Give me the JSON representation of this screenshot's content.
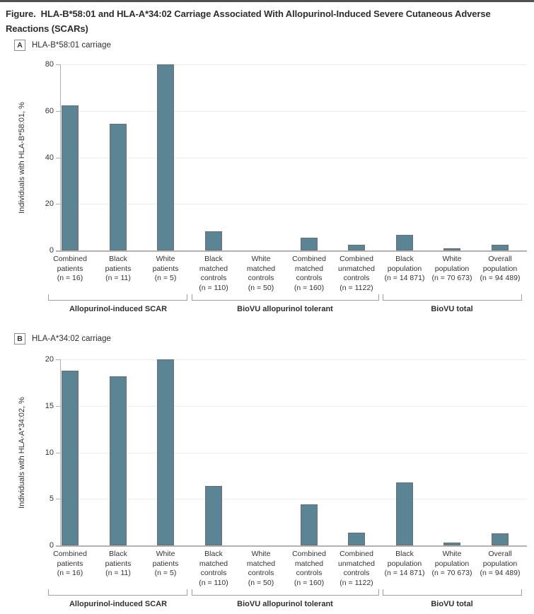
{
  "title": "Figure.  HLA-B*58:01 and HLA-A*34:02 Carriage Associated With Allopurinol-Induced Severe Cutaneous Adverse Reactions (SCARs)",
  "colors": {
    "bar_fill": "#5b8495",
    "bar_border": "#6b6f71",
    "grid": "#ededed",
    "axis": "#b0b0b0",
    "baseline": "#b3b3b3",
    "text": "#333333",
    "title_text": "#2d2d2d",
    "bracket": "#9e9e9e"
  },
  "chart_data": [
    {
      "type": "bar",
      "panel_key": "A",
      "panel_label": "HLA-B*58:01 carriage",
      "ylabel": "Individuals with HLA-B*58:01, %",
      "xlabel": "",
      "ylim": [
        0,
        80
      ],
      "yticks": [
        0,
        20,
        40,
        60,
        80
      ],
      "grid": true,
      "legend_position": "none",
      "categories": [
        [
          "Combined",
          "patients",
          "(n = 16)"
        ],
        [
          "Black",
          "patients",
          "(n = 11)"
        ],
        [
          "White",
          "patients",
          "(n = 5)"
        ],
        [
          "Black",
          "matched",
          "controls",
          "(n = 110)"
        ],
        [
          "White",
          "matched",
          "controls",
          "(n = 50)"
        ],
        [
          "Combined",
          "matched",
          "controls",
          "(n = 160)"
        ],
        [
          "Combined",
          "unmatched",
          "controls",
          "(n = 1122)"
        ],
        [
          "Black",
          "population",
          "(n = 14 871)"
        ],
        [
          "White",
          "population",
          "(n = 70 673)"
        ],
        [
          "Overall",
          "population",
          "(n = 94 489)"
        ]
      ],
      "values": [
        62.5,
        54.5,
        80,
        8.2,
        0,
        5.6,
        2.3,
        6.8,
        0.8,
        2.3
      ],
      "groups": [
        {
          "label": "Allopurinol-induced SCAR",
          "from": 0,
          "to": 2
        },
        {
          "label": "BioVU allopurinol tolerant",
          "from": 3,
          "to": 6
        },
        {
          "label": "BioVU total",
          "from": 7,
          "to": 9
        }
      ]
    },
    {
      "type": "bar",
      "panel_key": "B",
      "panel_label": "HLA-A*34:02 carriage",
      "ylabel": "Individuals with HLA-A*34:02, %",
      "xlabel": "",
      "ylim": [
        0,
        20
      ],
      "yticks": [
        0,
        5,
        10,
        15,
        20
      ],
      "grid": true,
      "legend_position": "none",
      "categories": [
        [
          "Combined",
          "patients",
          "(n = 16)"
        ],
        [
          "Black",
          "patients",
          "(n = 11)"
        ],
        [
          "White",
          "patients",
          "(n = 5)"
        ],
        [
          "Black",
          "matched",
          "controls",
          "(n = 110)"
        ],
        [
          "White",
          "matched",
          "controls",
          "(n = 50)"
        ],
        [
          "Combined",
          "matched",
          "controls",
          "(n = 160)"
        ],
        [
          "Combined",
          "unmatched",
          "controls",
          "(n = 1122)"
        ],
        [
          "Black",
          "population",
          "(n = 14 871)"
        ],
        [
          "White",
          "population",
          "(n = 70 673)"
        ],
        [
          "Overall",
          "population",
          "(n = 94 489)"
        ]
      ],
      "values": [
        18.8,
        18.2,
        20,
        6.4,
        0,
        4.4,
        1.4,
        6.8,
        0.3,
        1.3
      ],
      "groups": [
        {
          "label": "Allopurinol-induced SCAR",
          "from": 0,
          "to": 2
        },
        {
          "label": "BioVU allopurinol tolerant",
          "from": 3,
          "to": 6
        },
        {
          "label": "BioVU total",
          "from": 7,
          "to": 9
        }
      ]
    }
  ]
}
